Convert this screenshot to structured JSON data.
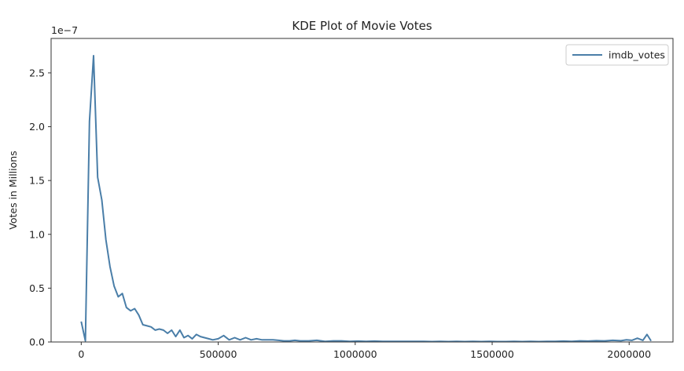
{
  "chart_data": {
    "type": "line",
    "title": "KDE Plot of Movie Votes",
    "xlabel": "",
    "ylabel": "Votes in Millions",
    "y_offset_label": "1e−7",
    "xlim": [
      -110000,
      2160000
    ],
    "ylim": [
      0,
      2.82
    ],
    "grid": false,
    "legend_position": "top-right",
    "x_ticks": [
      0,
      500000,
      1000000,
      1500000,
      2000000
    ],
    "x_tick_labels": [
      "0",
      "500000",
      "1000000",
      "1500000",
      "2000000"
    ],
    "y_ticks": [
      0,
      0.5,
      1.0,
      1.5,
      2.0,
      2.5
    ],
    "y_tick_labels": [
      "0.0",
      "0.5",
      "1.0",
      "1.5",
      "2.0",
      "2.5"
    ],
    "series": [
      {
        "name": "imdb_votes",
        "color": "#4a7ea8",
        "x": [
          0,
          15000,
          30000,
          45000,
          60000,
          75000,
          90000,
          105000,
          120000,
          135000,
          150000,
          165000,
          180000,
          195000,
          210000,
          225000,
          240000,
          255000,
          270000,
          285000,
          300000,
          315000,
          330000,
          345000,
          360000,
          375000,
          390000,
          405000,
          420000,
          435000,
          450000,
          465000,
          480000,
          500000,
          520000,
          540000,
          560000,
          580000,
          600000,
          620000,
          640000,
          660000,
          680000,
          700000,
          720000,
          740000,
          760000,
          780000,
          800000,
          830000,
          860000,
          890000,
          920000,
          950000,
          980000,
          1010000,
          1040000,
          1070000,
          1100000,
          1130000,
          1160000,
          1190000,
          1220000,
          1250000,
          1280000,
          1310000,
          1340000,
          1370000,
          1400000,
          1430000,
          1460000,
          1490000,
          1520000,
          1550000,
          1580000,
          1610000,
          1640000,
          1670000,
          1700000,
          1730000,
          1760000,
          1790000,
          1820000,
          1850000,
          1880000,
          1910000,
          1940000,
          1970000,
          1990000,
          2010000,
          2030000,
          2050000,
          2065000,
          2080000
        ],
        "values": [
          0.19,
          0.01,
          2.05,
          2.66,
          1.53,
          1.32,
          0.95,
          0.7,
          0.52,
          0.42,
          0.45,
          0.32,
          0.29,
          0.31,
          0.25,
          0.16,
          0.15,
          0.14,
          0.11,
          0.12,
          0.11,
          0.08,
          0.11,
          0.05,
          0.11,
          0.04,
          0.06,
          0.03,
          0.07,
          0.05,
          0.04,
          0.03,
          0.02,
          0.03,
          0.06,
          0.02,
          0.04,
          0.02,
          0.04,
          0.02,
          0.03,
          0.02,
          0.02,
          0.02,
          0.015,
          0.01,
          0.01,
          0.015,
          0.01,
          0.01,
          0.015,
          0.005,
          0.01,
          0.01,
          0.005,
          0.008,
          0.005,
          0.008,
          0.005,
          0.006,
          0.005,
          0.006,
          0.005,
          0.005,
          0.004,
          0.006,
          0.004,
          0.005,
          0.004,
          0.005,
          0.004,
          0.005,
          0.004,
          0.004,
          0.005,
          0.004,
          0.006,
          0.004,
          0.006,
          0.005,
          0.008,
          0.006,
          0.01,
          0.008,
          0.012,
          0.01,
          0.015,
          0.012,
          0.02,
          0.015,
          0.035,
          0.015,
          0.07,
          0.01
        ]
      }
    ]
  }
}
